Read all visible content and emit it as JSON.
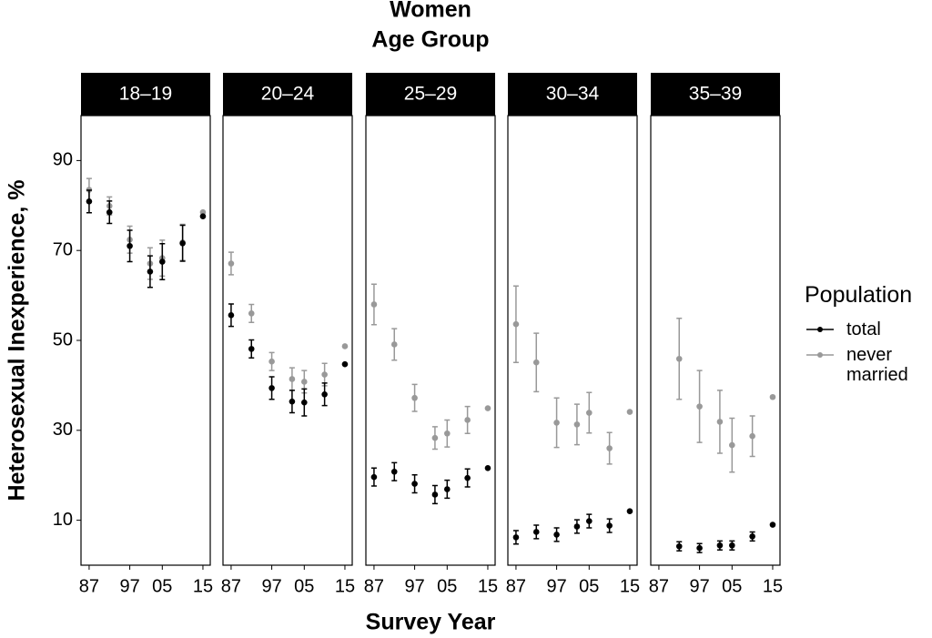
{
  "title": "Women",
  "subtitle": "Age Group",
  "x_label": "Survey Year",
  "y_label": "Heterosexual Inexperience, %",
  "legend_title": "Population",
  "chart_data": [
    {
      "type": "errorbar",
      "title": "18–19",
      "x": [
        1987,
        1992,
        1997,
        2002,
        2005,
        2010,
        2015
      ],
      "series": [
        {
          "name": "total",
          "color": "#000000",
          "values": [
            80.9,
            78.5,
            71,
            65.3,
            67.5,
            71.6,
            77.6
          ],
          "errors": [
            2.5,
            2.5,
            3.5,
            3.5,
            4,
            4,
            null
          ]
        },
        {
          "name": "never married",
          "color": "#999999",
          "values": [
            83.5,
            79.9,
            72.4,
            67.1,
            68.3,
            71.8,
            78.5
          ],
          "errors": [
            2.5,
            2,
            3,
            3.5,
            4,
            4,
            null
          ]
        }
      ],
      "xlim": [
        1985,
        2016.8
      ],
      "ylim": [
        0,
        100
      ],
      "xticks": [
        {
          "value": 1987,
          "label": "87"
        },
        {
          "value": 1997,
          "label": "97"
        },
        {
          "value": 2005,
          "label": "05"
        },
        {
          "value": 2015,
          "label": "15"
        }
      ],
      "yticks": [
        10,
        30,
        50,
        70,
        90
      ]
    },
    {
      "type": "errorbar",
      "title": "20–24",
      "x": [
        1987,
        1992,
        1997,
        2002,
        2005,
        2010,
        2015
      ],
      "series": [
        {
          "name": "total",
          "color": "#000000",
          "values": [
            55.6,
            48.1,
            39.4,
            36.4,
            36.2,
            38,
            44.7
          ],
          "errors": [
            2.5,
            2,
            2.5,
            2.5,
            3,
            2.5,
            null
          ]
        },
        {
          "name": "never married",
          "color": "#999999",
          "values": [
            67.1,
            56,
            45.3,
            41.4,
            40.8,
            42.4,
            48.7
          ],
          "errors": [
            2.5,
            2,
            2,
            2.5,
            2.5,
            2.5,
            null
          ]
        }
      ],
      "xlim": [
        1985,
        2016.8
      ],
      "ylim": [
        0,
        100
      ],
      "xticks": [
        {
          "value": 1987,
          "label": "87"
        },
        {
          "value": 1997,
          "label": "97"
        },
        {
          "value": 2005,
          "label": "05"
        },
        {
          "value": 2015,
          "label": "15"
        }
      ]
    },
    {
      "type": "errorbar",
      "title": "25–29",
      "x": [
        1987,
        1992,
        1997,
        2002,
        2005,
        2010,
        2015
      ],
      "series": [
        {
          "name": "total",
          "color": "#000000",
          "values": [
            19.6,
            20.8,
            18.1,
            15.7,
            16.9,
            19.4,
            21.6
          ],
          "errors": [
            2,
            2,
            2,
            2,
            2,
            2,
            null
          ]
        },
        {
          "name": "never married",
          "color": "#999999",
          "values": [
            58,
            49.1,
            37.2,
            28.3,
            29.3,
            32.3,
            34.9
          ],
          "errors": [
            4.5,
            3.5,
            3,
            2.5,
            3,
            3,
            null
          ]
        }
      ],
      "xlim": [
        1985,
        2016.8
      ],
      "ylim": [
        0,
        100
      ],
      "xticks": [
        {
          "value": 1987,
          "label": "87"
        },
        {
          "value": 1997,
          "label": "97"
        },
        {
          "value": 2005,
          "label": "05"
        },
        {
          "value": 2015,
          "label": "15"
        }
      ]
    },
    {
      "type": "errorbar",
      "title": "30–34",
      "x": [
        1987,
        1992,
        1997,
        2002,
        2005,
        2010,
        2015
      ],
      "series": [
        {
          "name": "total",
          "color": "#000000",
          "values": [
            6.2,
            7.4,
            6.8,
            8.6,
            9.8,
            8.8,
            12
          ],
          "errors": [
            1.5,
            1.5,
            1.5,
            1.5,
            1.5,
            1.5,
            null
          ]
        },
        {
          "name": "never married",
          "color": "#999999",
          "values": [
            53.6,
            45.1,
            31.7,
            31.3,
            33.9,
            26,
            34.1
          ],
          "errors": [
            8.5,
            6.5,
            5.5,
            4.5,
            4.5,
            3.5,
            null
          ]
        }
      ],
      "xlim": [
        1985,
        2016.8
      ],
      "ylim": [
        0,
        100
      ],
      "xticks": [
        {
          "value": 1987,
          "label": "87"
        },
        {
          "value": 1997,
          "label": "97"
        },
        {
          "value": 2005,
          "label": "05"
        },
        {
          "value": 2015,
          "label": "15"
        }
      ]
    },
    {
      "type": "errorbar",
      "title": "35–39",
      "x": [
        1987,
        1992,
        1997,
        2002,
        2005,
        2010,
        2015
      ],
      "series": [
        {
          "name": "total",
          "color": "#000000",
          "values": [
            null,
            4.2,
            3.8,
            4.4,
            4.4,
            6.4,
            9
          ],
          "errors": [
            null,
            1,
            1,
            1,
            1,
            1,
            null
          ]
        },
        {
          "name": "never married",
          "color": "#999999",
          "values": [
            null,
            45.9,
            35.3,
            31.9,
            26.7,
            28.7,
            37.4
          ],
          "errors": [
            null,
            9,
            8,
            7,
            6,
            4.5,
            null
          ]
        }
      ],
      "xlim": [
        1985,
        2016.8
      ],
      "ylim": [
        0,
        100
      ],
      "xticks": [
        {
          "value": 1987,
          "label": "87"
        },
        {
          "value": 1997,
          "label": "97"
        },
        {
          "value": 2005,
          "label": "05"
        },
        {
          "value": 2015,
          "label": "15"
        }
      ]
    }
  ]
}
